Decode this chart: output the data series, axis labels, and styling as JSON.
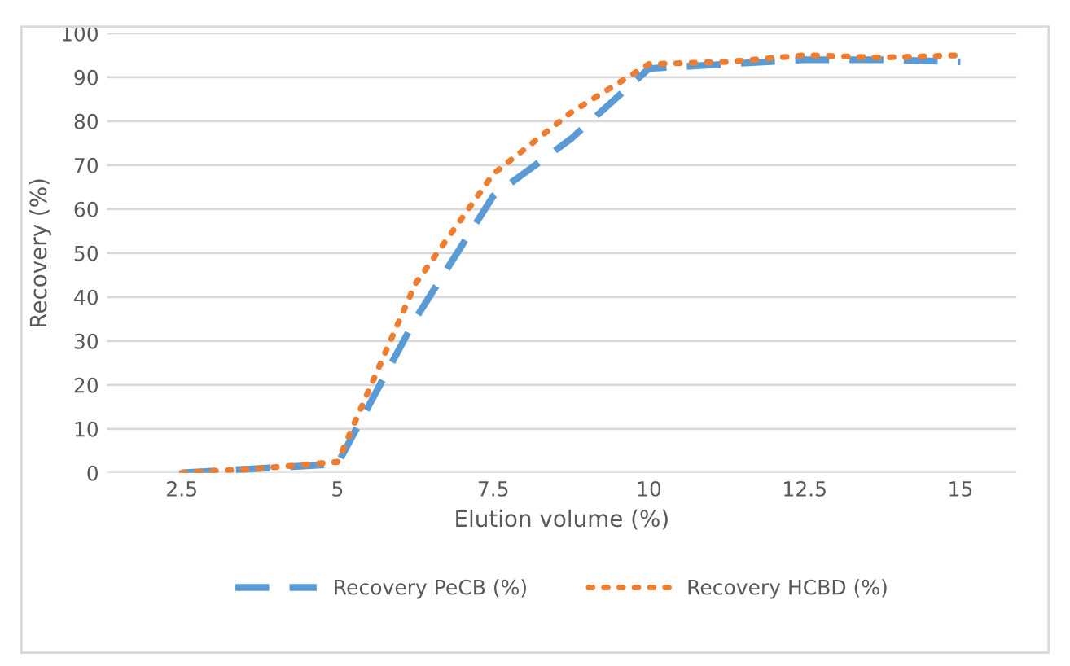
{
  "chart_data": {
    "type": "line",
    "xlabel": "Elution volume (%)",
    "ylabel": "Recovery (%)",
    "x": [
      2.5,
      3.75,
      5,
      6.25,
      7.5,
      8.75,
      10,
      11.25,
      12.5,
      13.75,
      15
    ],
    "series": [
      {
        "name": "Recovery PeCB (%)",
        "color": "#5b9bd5",
        "line_style": "dashed",
        "values": [
          0,
          1,
          2,
          35,
          63,
          76,
          92,
          93,
          94,
          94,
          93.5
        ]
      },
      {
        "name": "Recovery HCBD (%)",
        "color": "#ed7d31",
        "line_style": "dotted",
        "values": [
          0,
          1,
          2.5,
          43,
          68,
          82,
          93,
          93.5,
          95,
          94.5,
          95
        ]
      }
    ],
    "xlim": [
      1.3,
      15.9
    ],
    "xticks": [
      2.5,
      5,
      7.5,
      10,
      12.5,
      15
    ],
    "ylim": [
      0,
      100
    ],
    "yticks": [
      0,
      10,
      20,
      30,
      40,
      50,
      60,
      70,
      80,
      90,
      100
    ],
    "grid": "y",
    "legend": "bottom",
    "marker": "none"
  }
}
